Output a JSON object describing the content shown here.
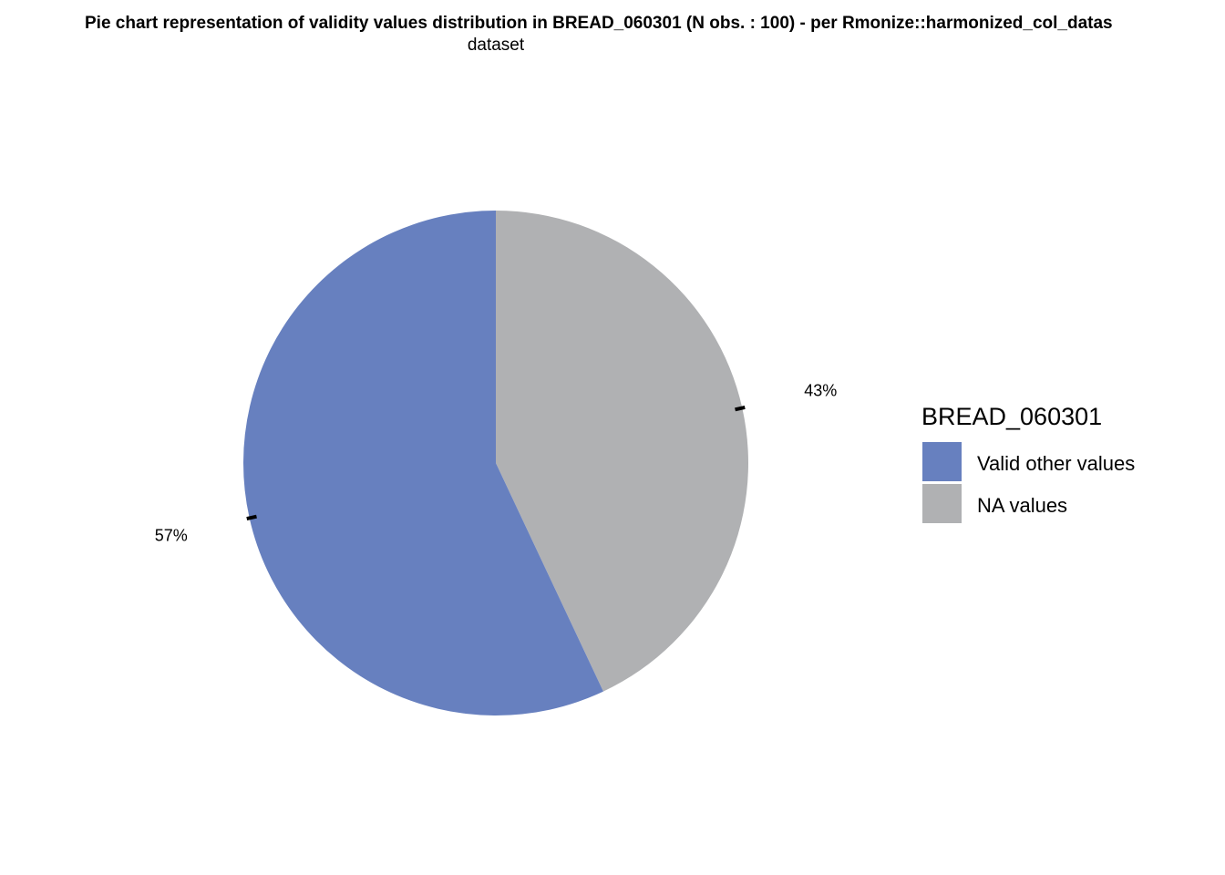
{
  "chart_data": {
    "type": "pie",
    "title": "Pie chart representation of validity values distribution in BREAD_060301 (N obs. : 100) - per Rmonize::harmonized_col_datas",
    "subtitle": "dataset",
    "categories": [
      "Valid other values",
      "NA values"
    ],
    "values": [
      57,
      43
    ],
    "labels": [
      "57%",
      "43%"
    ],
    "colors": [
      "#6780bf",
      "#b0b1b3"
    ],
    "n_obs": 100,
    "legend": {
      "title": "BREAD_060301",
      "placement": "right",
      "entries": [
        "Valid other values",
        "NA values"
      ]
    }
  }
}
